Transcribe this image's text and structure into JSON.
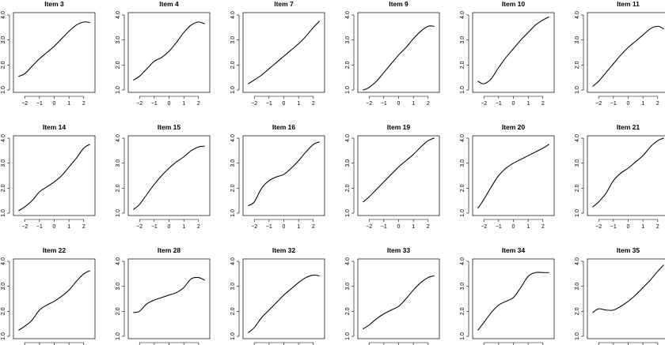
{
  "chart_data": {
    "type": "line",
    "xlabel": "",
    "ylabel": "",
    "xlim": [
      -2.6,
      2.6
    ],
    "ylim": [
      1.0,
      4.0
    ],
    "x_ticks": [
      -2,
      -1,
      0,
      1,
      2
    ],
    "x_tick_labels": [
      "−2",
      "−1",
      "0",
      "1",
      "2"
    ],
    "y_ticks": [
      1,
      2,
      3,
      4
    ],
    "y_tick_labels": [
      "1.0",
      "2.0",
      "3.0",
      "4.0"
    ],
    "grid": false,
    "x": [
      -2.4,
      -2.0,
      -1.5,
      -1.0,
      -0.5,
      0.0,
      0.5,
      1.0,
      1.5,
      2.0,
      2.4
    ],
    "panels": [
      {
        "title": "Item 3",
        "values": [
          1.55,
          1.65,
          1.95,
          2.25,
          2.5,
          2.75,
          3.05,
          3.35,
          3.6,
          3.72,
          3.7
        ]
      },
      {
        "title": "Item 4",
        "values": [
          1.4,
          1.55,
          1.85,
          2.15,
          2.3,
          2.55,
          2.9,
          3.3,
          3.6,
          3.72,
          3.65
        ]
      },
      {
        "title": "Item 7",
        "values": [
          1.25,
          1.4,
          1.6,
          1.85,
          2.1,
          2.35,
          2.6,
          2.85,
          3.15,
          3.5,
          3.75
        ]
      },
      {
        "title": "Item 9",
        "values": [
          1.0,
          1.1,
          1.35,
          1.7,
          2.05,
          2.4,
          2.7,
          3.05,
          3.35,
          3.55,
          3.55
        ]
      },
      {
        "title": "Item 10",
        "values": [
          1.35,
          1.25,
          1.45,
          1.9,
          2.3,
          2.65,
          3.0,
          3.3,
          3.6,
          3.8,
          3.92
        ]
      },
      {
        "title": "Item 11",
        "values": [
          1.15,
          1.35,
          1.7,
          2.05,
          2.4,
          2.7,
          2.95,
          3.2,
          3.45,
          3.55,
          3.45
        ]
      },
      {
        "title": "Item 14",
        "values": [
          1.1,
          1.25,
          1.5,
          1.85,
          2.05,
          2.25,
          2.5,
          2.85,
          3.2,
          3.6,
          3.75
        ]
      },
      {
        "title": "Item 15",
        "values": [
          1.15,
          1.35,
          1.75,
          2.15,
          2.5,
          2.8,
          3.05,
          3.25,
          3.5,
          3.65,
          3.68
        ]
      },
      {
        "title": "Item 16",
        "values": [
          1.3,
          1.45,
          2.0,
          2.3,
          2.45,
          2.55,
          2.8,
          3.1,
          3.45,
          3.75,
          3.85
        ]
      },
      {
        "title": "Item 19",
        "values": [
          1.45,
          1.65,
          1.95,
          2.25,
          2.55,
          2.85,
          3.1,
          3.35,
          3.65,
          3.9,
          4.0
        ]
      },
      {
        "title": "Item 20",
        "values": [
          1.2,
          1.55,
          2.05,
          2.5,
          2.8,
          3.0,
          3.15,
          3.3,
          3.45,
          3.6,
          3.75
        ]
      },
      {
        "title": "Item 21",
        "values": [
          1.25,
          1.45,
          1.8,
          2.3,
          2.6,
          2.8,
          3.05,
          3.3,
          3.65,
          3.9,
          4.0
        ]
      },
      {
        "title": "Item 22",
        "values": [
          1.25,
          1.4,
          1.65,
          2.05,
          2.25,
          2.4,
          2.6,
          2.85,
          3.2,
          3.5,
          3.62
        ]
      },
      {
        "title": "Item 28",
        "values": [
          1.95,
          2.0,
          2.3,
          2.45,
          2.55,
          2.65,
          2.75,
          2.95,
          3.3,
          3.35,
          3.25
        ]
      },
      {
        "title": "Item 32",
        "values": [
          1.15,
          1.35,
          1.75,
          2.05,
          2.35,
          2.65,
          2.9,
          3.15,
          3.35,
          3.45,
          3.42
        ]
      },
      {
        "title": "Item 33",
        "values": [
          1.3,
          1.45,
          1.7,
          1.9,
          2.05,
          2.2,
          2.5,
          2.85,
          3.15,
          3.35,
          3.42
        ]
      },
      {
        "title": "Item 34",
        "values": [
          1.25,
          1.55,
          1.95,
          2.25,
          2.4,
          2.55,
          2.95,
          3.4,
          3.55,
          3.55,
          3.55
        ]
      },
      {
        "title": "Item 35",
        "values": [
          1.95,
          2.1,
          2.05,
          2.05,
          2.2,
          2.4,
          2.65,
          2.95,
          3.25,
          3.6,
          3.85
        ]
      }
    ]
  }
}
